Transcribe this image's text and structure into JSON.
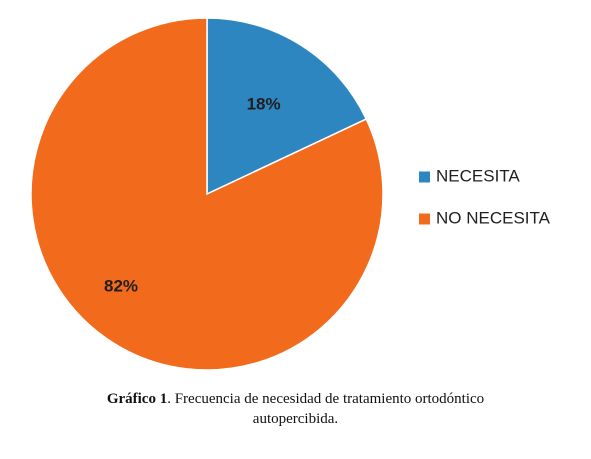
{
  "chart_data": {
    "type": "pie",
    "categories": [
      "NECESITA",
      "NO NECESITA"
    ],
    "values": [
      18,
      82
    ],
    "labels": [
      "18%",
      "82%"
    ],
    "colors": [
      "#2e86c1",
      "#f26b1d"
    ],
    "legend_placement": "right",
    "start_angle": "12 o'clock",
    "direction": "clockwise"
  },
  "caption": {
    "bold": "Gráfico 1",
    "text": ". Frecuencia de necesidad de tratamiento ortodóntico",
    "line2": "autopercibida."
  }
}
